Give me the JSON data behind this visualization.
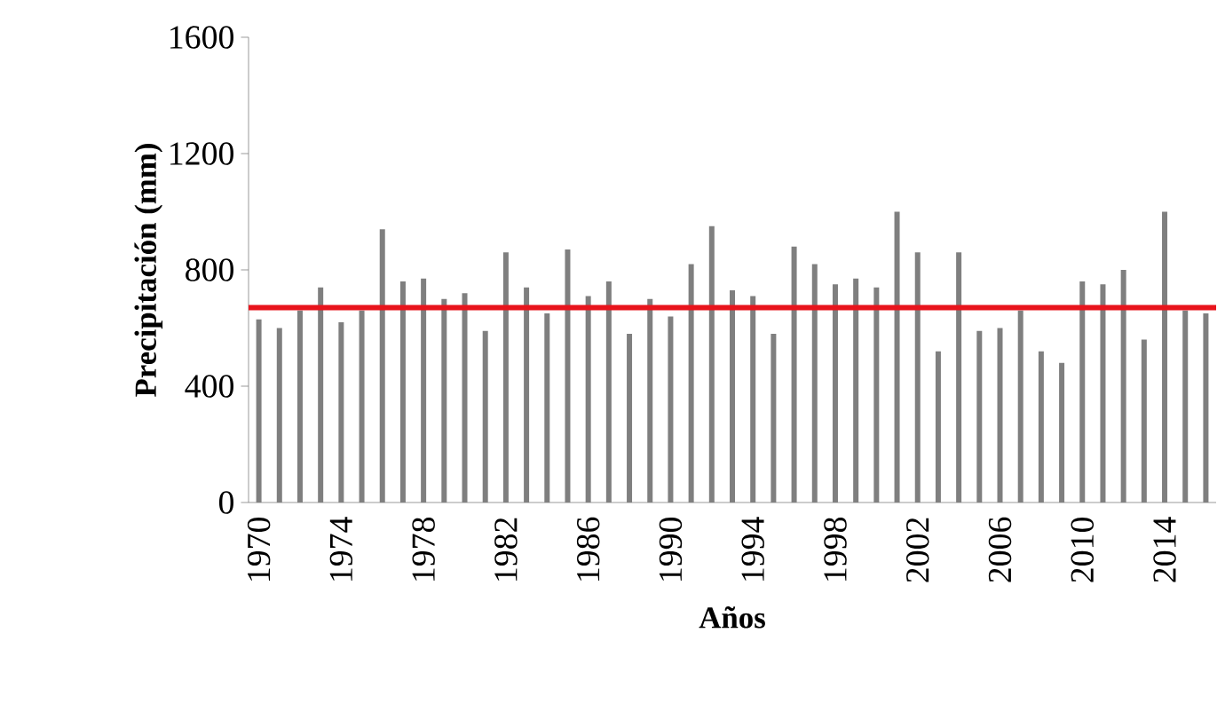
{
  "chart_data": {
    "type": "bar",
    "xlabel": "Años",
    "ylabel": "Precipitación (mm)",
    "categories": [
      "1970",
      null,
      null,
      null,
      "1974",
      null,
      null,
      null,
      "1978",
      null,
      null,
      null,
      "1982",
      null,
      null,
      null,
      "1986",
      null,
      null,
      null,
      "1990",
      null,
      null,
      null,
      "1994",
      null,
      null,
      null,
      "1998",
      null,
      null,
      null,
      "2002",
      null,
      null,
      null,
      "2006",
      null,
      null,
      null,
      "2010",
      null,
      null,
      null,
      "2014",
      null,
      null
    ],
    "values": [
      630,
      600,
      660,
      740,
      620,
      660,
      940,
      760,
      770,
      700,
      720,
      590,
      860,
      740,
      650,
      870,
      710,
      760,
      580,
      700,
      640,
      820,
      950,
      730,
      710,
      580,
      880,
      820,
      750,
      770,
      740,
      1000,
      860,
      520,
      860,
      590,
      600,
      660,
      520,
      480,
      760,
      750,
      800,
      560,
      1000,
      660,
      650
    ],
    "color": "#7f7f7f",
    "ylim": [
      0,
      1600
    ],
    "yticks": [
      0,
      400,
      800,
      1200,
      1600
    ],
    "ref_lines": [
      {
        "axis": "y",
        "value": 670,
        "color": "#e8141c"
      }
    ],
    "grid": false
  }
}
